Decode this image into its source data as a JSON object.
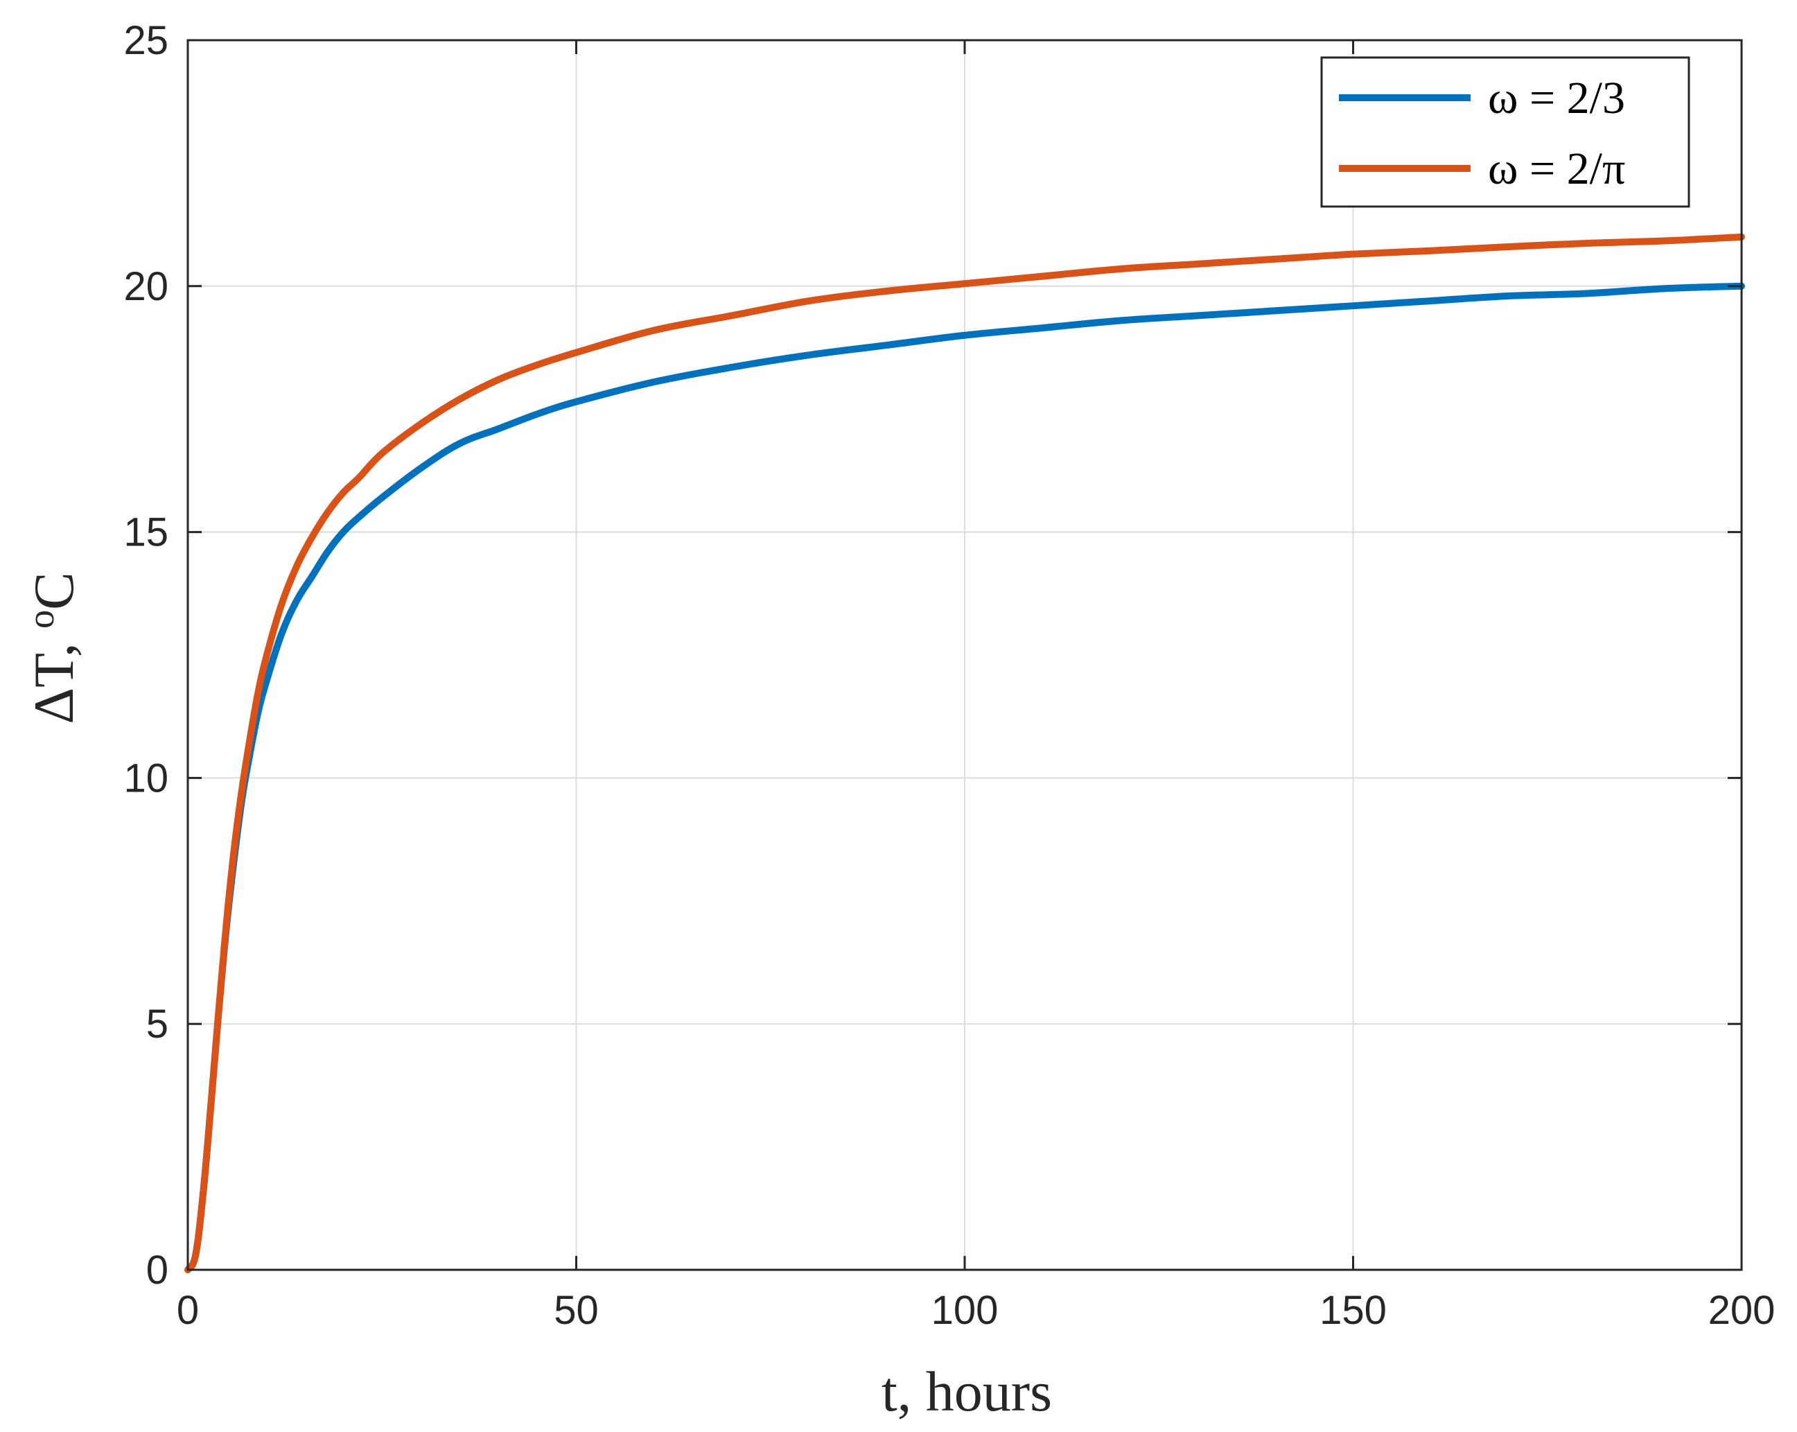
{
  "chart_data": {
    "type": "line",
    "title": "",
    "xlabel": "t, hours",
    "ylabel": "ΔT, ",
    "ylabel_unit_sup": "o",
    "ylabel_unit": "C",
    "xlim": [
      0,
      200
    ],
    "ylim": [
      0,
      25
    ],
    "xticks": [
      0,
      50,
      100,
      150,
      200
    ],
    "yticks": [
      0,
      5,
      10,
      15,
      20,
      25
    ],
    "xtick_labels": [
      "0",
      "50",
      "100",
      "150",
      "200"
    ],
    "ytick_labels": [
      "0",
      "5",
      "10",
      "15",
      "20",
      "25"
    ],
    "grid": true,
    "legend_position": "top-right",
    "x": [
      0,
      1,
      2,
      3,
      4,
      5,
      6,
      7,
      8,
      9,
      10,
      12,
      14,
      16,
      18,
      20,
      22,
      25,
      30,
      35,
      40,
      45,
      50,
      60,
      70,
      80,
      90,
      100,
      110,
      120,
      130,
      140,
      150,
      160,
      170,
      180,
      190,
      200
    ],
    "series": [
      {
        "name": "ω = 2/3",
        "color": "#0072BD",
        "values": [
          0,
          0.3,
          1.6,
          3.4,
          5.3,
          7.0,
          8.4,
          9.6,
          10.5,
          11.3,
          11.9,
          12.9,
          13.6,
          14.1,
          14.6,
          15.0,
          15.3,
          15.7,
          16.3,
          16.8,
          17.1,
          17.4,
          17.65,
          18.05,
          18.35,
          18.6,
          18.8,
          19.0,
          19.15,
          19.3,
          19.4,
          19.5,
          19.6,
          19.7,
          19.8,
          19.85,
          19.95,
          20.0
        ]
      },
      {
        "name": "ω = 2/π",
        "color": "#D95319",
        "values": [
          0,
          0.3,
          1.6,
          3.4,
          5.3,
          7.1,
          8.6,
          9.8,
          10.8,
          11.7,
          12.4,
          13.5,
          14.3,
          14.9,
          15.4,
          15.8,
          16.1,
          16.6,
          17.2,
          17.7,
          18.1,
          18.4,
          18.65,
          19.1,
          19.4,
          19.7,
          19.9,
          20.05,
          20.2,
          20.35,
          20.45,
          20.55,
          20.65,
          20.72,
          20.8,
          20.87,
          20.92,
          21.0
        ]
      }
    ]
  }
}
